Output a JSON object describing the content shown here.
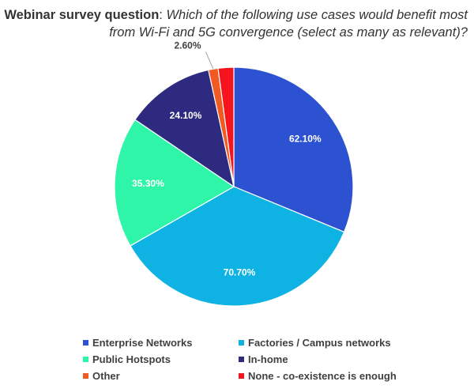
{
  "title": {
    "bold": "Webinar survey question",
    "sep": ":",
    "italic_line1": "Which of the following use cases would benefit most",
    "italic_line2": "from Wi-Fi and 5G convergence (select as many as relevant)?"
  },
  "chart_data": {
    "type": "pie",
    "slices": [
      {
        "label": "Enterprise Networks",
        "value": 62.1,
        "value_label": "62.10%",
        "color": "#2c52d2"
      },
      {
        "label": "Factories / Campus networks",
        "value": 70.7,
        "value_label": "70.70%",
        "color": "#0fb3e3"
      },
      {
        "label": "Public Hotspots",
        "value": 35.3,
        "value_label": "35.30%",
        "color": "#2ff5a8"
      },
      {
        "label": "In-home",
        "value": 24.1,
        "value_label": "24.10%",
        "color": "#2e2a80"
      },
      {
        "label": "Other",
        "value": 2.6,
        "value_label": "2.60%",
        "color": "#f25a24"
      },
      {
        "label": "None - co-existence is enough",
        "value": 4.2,
        "value_label": "",
        "color": "#f5141e"
      }
    ],
    "legend_position": "bottom"
  }
}
